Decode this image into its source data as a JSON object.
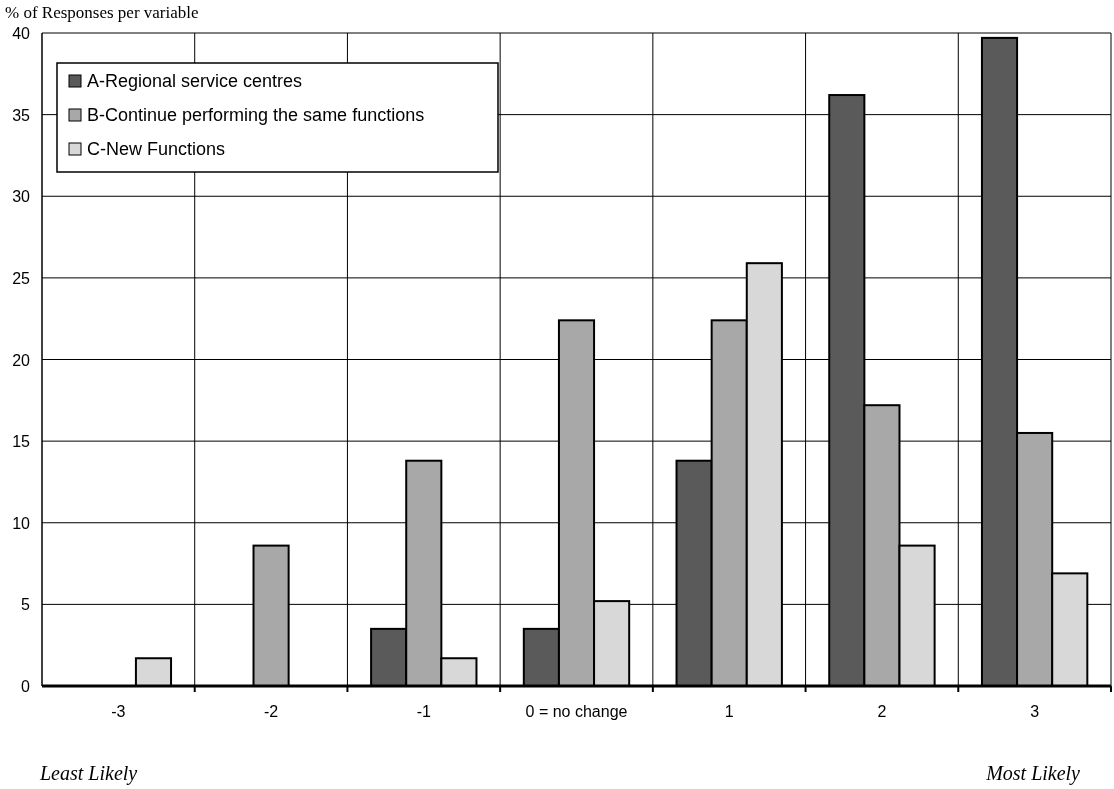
{
  "chart_data": {
    "type": "bar",
    "ylabel": "% of Responses per variable",
    "categories": [
      "-3",
      "-2",
      "-1",
      "0 = no change",
      "1",
      "2",
      "3"
    ],
    "series": [
      {
        "name": "A-Regional service centres",
        "color": "#5a5a5a",
        "values": [
          0,
          0,
          3.5,
          3.5,
          13.8,
          36.2,
          39.7
        ]
      },
      {
        "name": "B-Continue performing the same functions",
        "color": "#a8a8a8",
        "values": [
          0,
          8.6,
          13.8,
          22.4,
          22.4,
          17.2,
          15.5
        ]
      },
      {
        "name": "C-New Functions",
        "color": "#d8d8d8",
        "values": [
          1.7,
          0,
          1.7,
          5.2,
          25.9,
          8.6,
          6.9
        ]
      }
    ],
    "ylim": [
      0,
      40
    ],
    "yticks": [
      0,
      5,
      10,
      15,
      20,
      25,
      30,
      35,
      40
    ],
    "grid": true,
    "legend": "top left",
    "annotations": [
      "Least Likely",
      "Most Likely"
    ]
  }
}
